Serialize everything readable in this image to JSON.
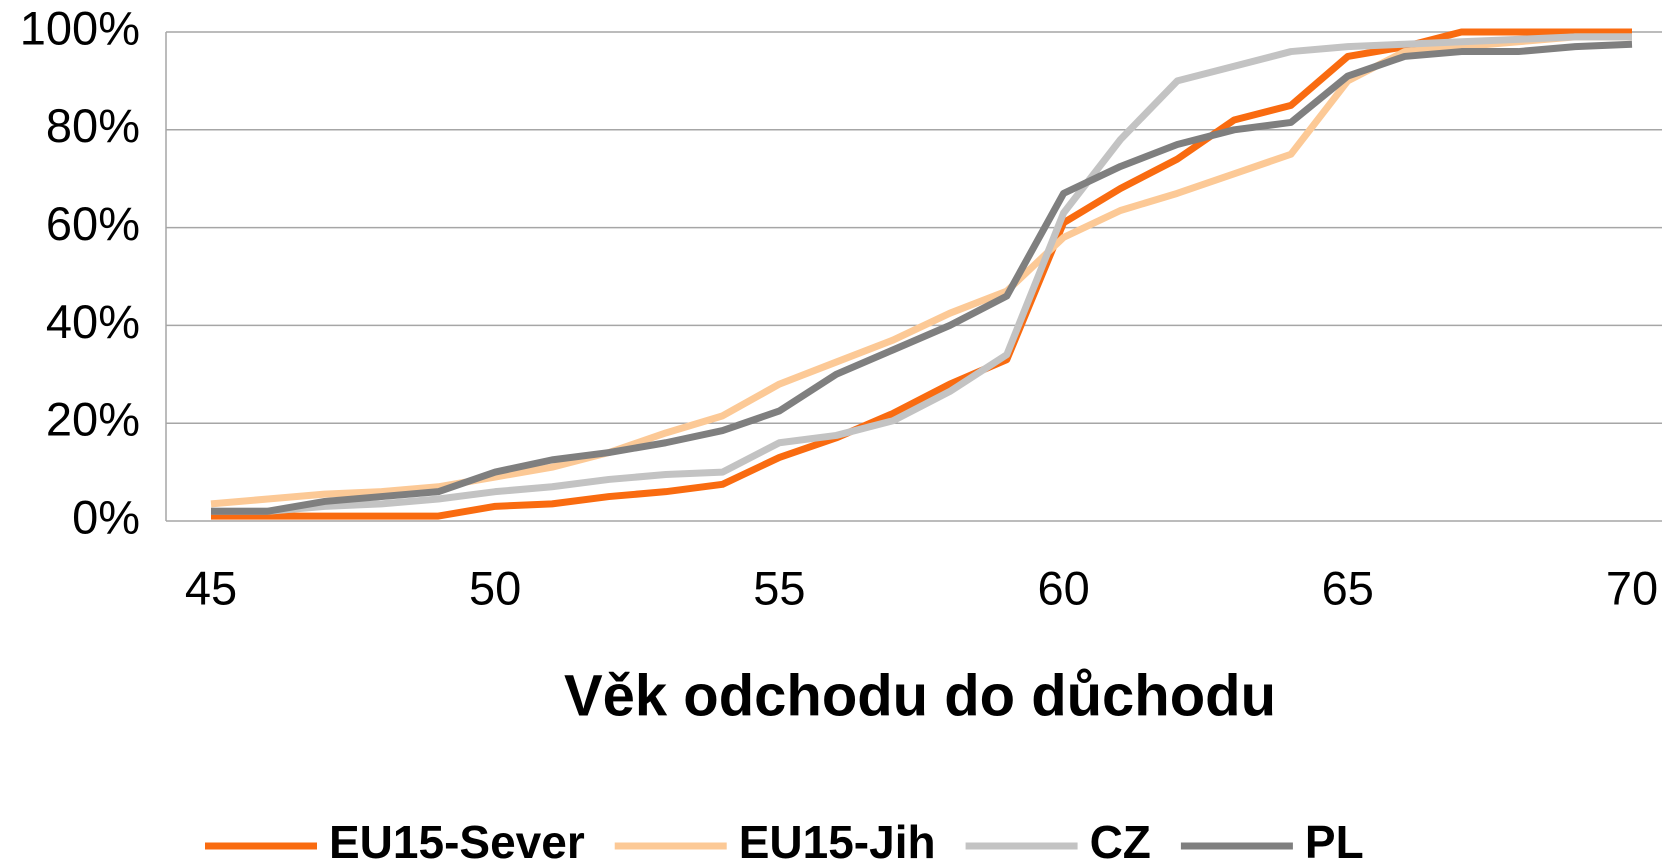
{
  "chart_data": {
    "type": "line",
    "x_label": "Věk odchodu do důchodu",
    "x": [
      45,
      46,
      47,
      48,
      49,
      50,
      51,
      52,
      53,
      54,
      55,
      56,
      57,
      58,
      59,
      60,
      61,
      62,
      63,
      64,
      65,
      66,
      67,
      68,
      69,
      70
    ],
    "xlim": [
      45,
      70
    ],
    "xticks": [
      45,
      50,
      55,
      60,
      65,
      70
    ],
    "ylim": [
      0,
      100
    ],
    "yticks": [
      {
        "value": 0,
        "label": "0%"
      },
      {
        "value": 20,
        "label": "20%"
      },
      {
        "value": 40,
        "label": "40%"
      },
      {
        "value": 60,
        "label": "60%"
      },
      {
        "value": 80,
        "label": "80%"
      },
      {
        "value": 100,
        "label": "100%"
      }
    ],
    "grid": true,
    "legend": "bottom",
    "series": [
      {
        "name": "EU15-Sever",
        "color": "#f96b10",
        "values": [
          1,
          1,
          1,
          1,
          1,
          3,
          3.5,
          5,
          6,
          7.5,
          13,
          17,
          22,
          28,
          33,
          61,
          68,
          74,
          82,
          85,
          95,
          97,
          100,
          100,
          100,
          100
        ]
      },
      {
        "name": "EU15-Jih",
        "color": "#fcc996",
        "values": [
          3.5,
          4.5,
          5.5,
          6,
          7,
          9,
          11,
          14,
          18,
          21.5,
          28,
          32.5,
          37,
          42.5,
          47,
          58,
          63.5,
          67,
          71,
          75,
          90,
          96,
          97,
          98,
          99,
          99
        ]
      },
      {
        "name": "CZ",
        "color": "#c3c3c3",
        "values": [
          2,
          2,
          3,
          3.5,
          4.5,
          6,
          7,
          8.5,
          9.5,
          10,
          16,
          17.5,
          20.5,
          26.5,
          34,
          63,
          78,
          90,
          93,
          96,
          97,
          97.5,
          98,
          98.5,
          99,
          99
        ]
      },
      {
        "name": "PL",
        "color": "#7f7f7f",
        "values": [
          2,
          2,
          4,
          5,
          6,
          10,
          12.5,
          14,
          16,
          18.5,
          22.5,
          30,
          35,
          40,
          46,
          67,
          72.5,
          77,
          80,
          81.5,
          91,
          95,
          96,
          96,
          97,
          97.5
        ]
      }
    ]
  }
}
